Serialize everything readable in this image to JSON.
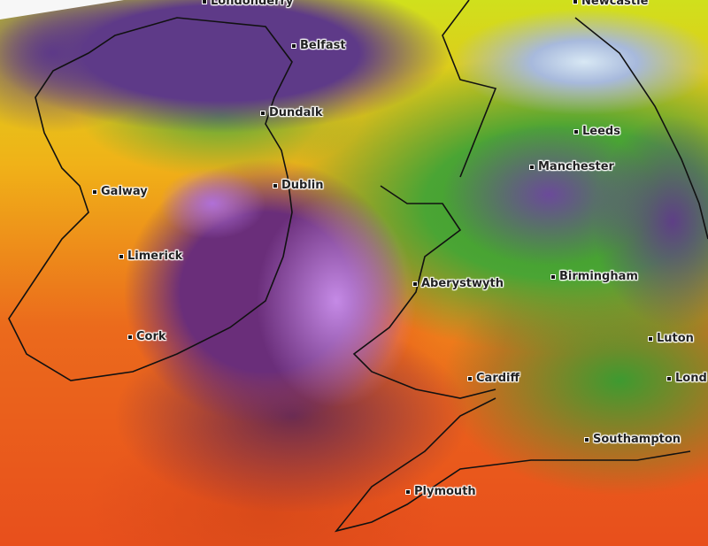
{
  "map": {
    "cities": [
      {
        "name": "Londonderry"
      },
      {
        "name": "Belfast"
      },
      {
        "name": "Newcastle"
      },
      {
        "name": "Dundalk"
      },
      {
        "name": "Leeds"
      },
      {
        "name": "Manchester"
      },
      {
        "name": "Galway"
      },
      {
        "name": "Dublin"
      },
      {
        "name": "Limerick"
      },
      {
        "name": "Aberystwyth"
      },
      {
        "name": "Birmingham"
      },
      {
        "name": "Cork"
      },
      {
        "name": "Luton"
      },
      {
        "name": "Cardiff"
      },
      {
        "name": "Lond"
      },
      {
        "name": "Southampton"
      },
      {
        "name": "Plymouth"
      }
    ],
    "colors": {
      "low": "#4aa534",
      "mid": "#f0b218",
      "high": "#e84f1c",
      "very_high": "#6a2e7a",
      "extreme": "#c58ae6"
    }
  }
}
